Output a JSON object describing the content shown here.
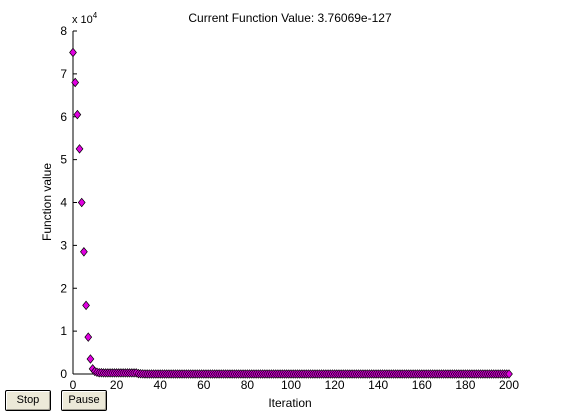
{
  "window": {
    "stop_label": "Stop",
    "pause_label": "Pause"
  },
  "chart_data": {
    "type": "scatter",
    "title": "Current Function Value: 3.76069e-127",
    "xlabel": "Iteration",
    "ylabel": "Function value",
    "xlim": [
      0,
      200
    ],
    "ylim": [
      0,
      80000
    ],
    "x_ticks": [
      "0",
      "20",
      "40",
      "60",
      "80",
      "100",
      "120",
      "140",
      "160",
      "180",
      "200"
    ],
    "y_ticks": [
      "0",
      "1",
      "2",
      "3",
      "4",
      "5",
      "6",
      "7",
      "8"
    ],
    "y_multiplier_base": "x 10",
    "y_multiplier_exponent": "4",
    "marker": "diamond",
    "marker_color": "#e000e0",
    "grid": false,
    "series": [
      {
        "x": [
          0,
          1,
          2,
          3,
          4,
          5,
          6,
          7,
          8,
          9,
          10,
          11,
          12,
          13,
          14,
          15,
          16,
          17,
          18,
          19,
          20,
          21,
          22,
          23,
          24,
          25,
          26,
          27,
          28,
          29,
          30,
          31,
          32,
          33,
          34,
          35,
          36,
          37,
          38,
          39,
          40,
          41,
          42,
          43,
          44,
          45,
          46,
          47,
          48,
          49,
          50,
          51,
          52,
          53,
          54,
          55,
          56,
          57,
          58,
          59,
          60,
          61,
          62,
          63,
          64,
          65,
          66,
          67,
          68,
          69,
          70,
          71,
          72,
          73,
          74,
          75,
          76,
          77,
          78,
          79,
          80,
          81,
          82,
          83,
          84,
          85,
          86,
          87,
          88,
          89,
          90,
          91,
          92,
          93,
          94,
          95,
          96,
          97,
          98,
          99,
          100,
          101,
          102,
          103,
          104,
          105,
          106,
          107,
          108,
          109,
          110,
          111,
          112,
          113,
          114,
          115,
          116,
          117,
          118,
          119,
          120,
          121,
          122,
          123,
          124,
          125,
          126,
          127,
          128,
          129,
          130,
          131,
          132,
          133,
          134,
          135,
          136,
          137,
          138,
          139,
          140,
          141,
          142,
          143,
          144,
          145,
          146,
          147,
          148,
          149,
          150,
          151,
          152,
          153,
          154,
          155,
          156,
          157,
          158,
          159,
          160,
          161,
          162,
          163,
          164,
          165,
          166,
          167,
          168,
          169,
          170,
          171,
          172,
          173,
          174,
          175,
          176,
          177,
          178,
          179,
          180,
          181,
          182,
          183,
          184,
          185,
          186,
          187,
          188,
          189,
          190,
          191,
          192,
          193,
          194,
          195,
          196,
          197,
          198,
          199,
          200
        ],
        "values": [
          75000,
          68000,
          60500,
          52500,
          40000,
          28500,
          16000,
          8600,
          3500,
          1200,
          600,
          400,
          300,
          300,
          250,
          250,
          250,
          250,
          250,
          250,
          250,
          250,
          250,
          250,
          250,
          250,
          250,
          250,
          250,
          250,
          100,
          50,
          20,
          10,
          5,
          2,
          1,
          0,
          0,
          0,
          0,
          0,
          0,
          0,
          0,
          0,
          0,
          0,
          0,
          0,
          0,
          0,
          0,
          0,
          0,
          0,
          0,
          0,
          0,
          0,
          0,
          0,
          0,
          0,
          0,
          0,
          0,
          0,
          0,
          0,
          0,
          0,
          0,
          0,
          0,
          0,
          0,
          0,
          0,
          0,
          0,
          0,
          0,
          0,
          0,
          0,
          0,
          0,
          0,
          0,
          0,
          0,
          0,
          0,
          0,
          0,
          0,
          0,
          0,
          0,
          0,
          0,
          0,
          0,
          0,
          0,
          0,
          0,
          0,
          0,
          0,
          0,
          0,
          0,
          0,
          0,
          0,
          0,
          0,
          0,
          0,
          0,
          0,
          0,
          0,
          0,
          0,
          0,
          0,
          0,
          0,
          0,
          0,
          0,
          0,
          0,
          0,
          0,
          0,
          0,
          0,
          0,
          0,
          0,
          0,
          0,
          0,
          0,
          0,
          0,
          0,
          0,
          0,
          0,
          0,
          0,
          0,
          0,
          0,
          0,
          0,
          0,
          0,
          0,
          0,
          0,
          0,
          0,
          0,
          0,
          0,
          0,
          0,
          0,
          0,
          0,
          0,
          0,
          0,
          0,
          0,
          0,
          0,
          0,
          0,
          0,
          0,
          0,
          0,
          0,
          0,
          0,
          0,
          0,
          0,
          0,
          0,
          0,
          0,
          0,
          0
        ]
      }
    ]
  }
}
